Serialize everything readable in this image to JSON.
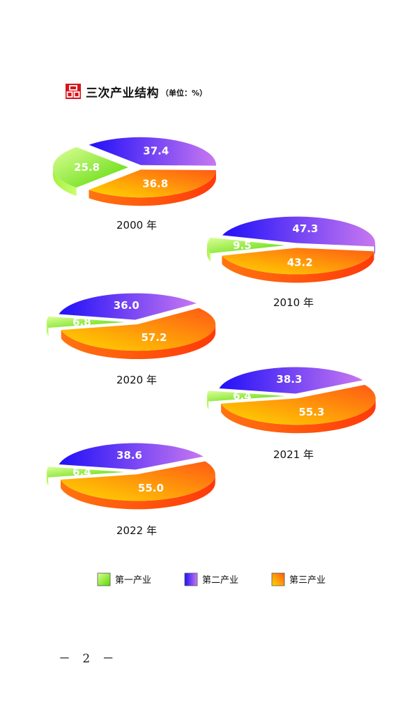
{
  "header": {
    "title": "三次产业结构",
    "unit": "（单位：%）"
  },
  "chart_data": {
    "type": "pie",
    "title": "三次产业结构",
    "unit": "（单位：%）",
    "series_names": [
      "第一产业",
      "第二产业",
      "第三产业"
    ],
    "charts": [
      {
        "label": "2000 年",
        "values": [
          25.8,
          37.4,
          36.8
        ]
      },
      {
        "label": "2010 年",
        "values": [
          9.5,
          47.3,
          43.2
        ]
      },
      {
        "label": "2020 年",
        "values": [
          6.8,
          36.0,
          57.2
        ]
      },
      {
        "label": "2021 年",
        "values": [
          6.4,
          38.3,
          55.3
        ]
      },
      {
        "label": "2022 年",
        "values": [
          6.4,
          38.6,
          55.0
        ]
      }
    ],
    "legend_position": "bottom"
  },
  "legend": {
    "items": [
      {
        "label": "第一产业"
      },
      {
        "label": "第二产业"
      },
      {
        "label": "第三产业"
      }
    ]
  },
  "colors": {
    "primary_light": "#c8ff66",
    "primary_dark": "#4fd400",
    "secondary_light": "#c878f0",
    "secondary_dark": "#2a14f5",
    "tertiary_light": "#ffd000",
    "tertiary_dark": "#ff5a14",
    "logo": "#d7141d"
  },
  "footer": {
    "page_number": "－ 2 －"
  }
}
